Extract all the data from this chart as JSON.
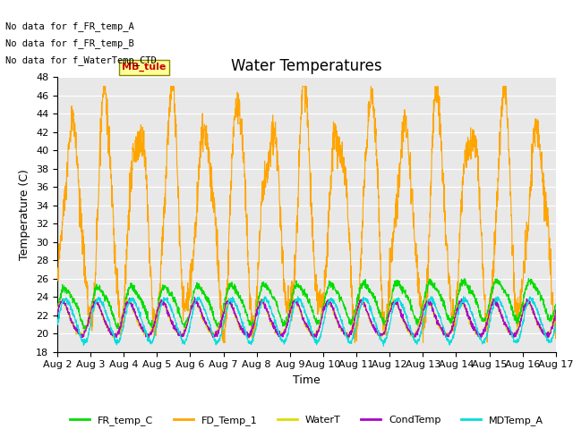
{
  "title": "Water Temperatures",
  "ylabel": "Temperature (C)",
  "xlabel": "Time",
  "ylim": [
    18,
    48
  ],
  "yticks": [
    18,
    20,
    22,
    24,
    26,
    28,
    30,
    32,
    34,
    36,
    38,
    40,
    42,
    44,
    46,
    48
  ],
  "xtick_labels": [
    "Aug 2",
    "Aug 3",
    "Aug 4",
    "Aug 5",
    "Aug 6",
    "Aug 7",
    "Aug 8",
    "Aug 9",
    "Aug 10",
    "Aug 11",
    "Aug 12",
    "Aug 13",
    "Aug 14",
    "Aug 15",
    "Aug 16",
    "Aug 17"
  ],
  "no_data_lines": [
    "No data for f_FR_temp_A",
    "No data for f_FR_temp_B",
    "No data for f_WaterTemp_CTD"
  ],
  "mb_tule_label": "MB_tule",
  "legend_entries": [
    {
      "label": "FR_temp_C",
      "color": "#00dd00"
    },
    {
      "label": "FD_Temp_1",
      "color": "#ffa500"
    },
    {
      "label": "WaterT",
      "color": "#dddd00"
    },
    {
      "label": "CondTemp",
      "color": "#aa00cc"
    },
    {
      "label": "MDTemp_A",
      "color": "#00dddd"
    }
  ],
  "background_color": "#e8e8e8",
  "fig_background_color": "#ffffff",
  "grid_color": "#ffffff",
  "title_fontsize": 12,
  "axis_label_fontsize": 9,
  "tick_fontsize": 8
}
